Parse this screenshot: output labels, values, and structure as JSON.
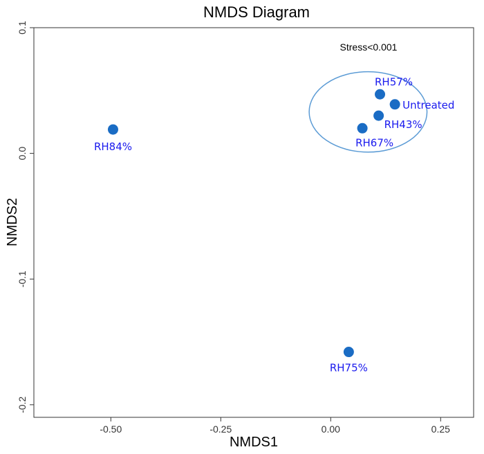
{
  "chart_data": {
    "type": "scatter",
    "title": "NMDS Diagram",
    "xlabel": "NMDS1",
    "ylabel": "NMDS2",
    "xlim": [
      -0.675,
      0.325
    ],
    "ylim": [
      -0.21,
      0.1
    ],
    "x_ticks": [
      -0.5,
      -0.25,
      0.0,
      0.25
    ],
    "x_tick_labels": [
      "-0.50",
      "-0.25",
      "0.00",
      "0.25"
    ],
    "y_ticks": [
      -0.2,
      -0.1,
      0.0,
      0.1
    ],
    "y_tick_labels": [
      "-0.2",
      "-0.1",
      "0.0",
      "0.1"
    ],
    "grid": false,
    "annotation": "Stress<0.001",
    "points": [
      {
        "label": "RH84%",
        "x": -0.495,
        "y": 0.019
      },
      {
        "label": "RH57%",
        "x": 0.112,
        "y": 0.047
      },
      {
        "label": "Untreated",
        "x": 0.146,
        "y": 0.039
      },
      {
        "label": "RH43%",
        "x": 0.109,
        "y": 0.03
      },
      {
        "label": "RH67%",
        "x": 0.072,
        "y": 0.02
      },
      {
        "label": "RH75%",
        "x": 0.041,
        "y": -0.158
      }
    ],
    "ellipse": {
      "center_x": 0.085,
      "center_y": 0.033,
      "radius_x": 0.134,
      "radius_y": 0.032
    },
    "colors": {
      "point": "#1a6cc4",
      "label": "#1a1aee",
      "ellipse": "#5b9bd5",
      "axis": "#333333"
    }
  }
}
